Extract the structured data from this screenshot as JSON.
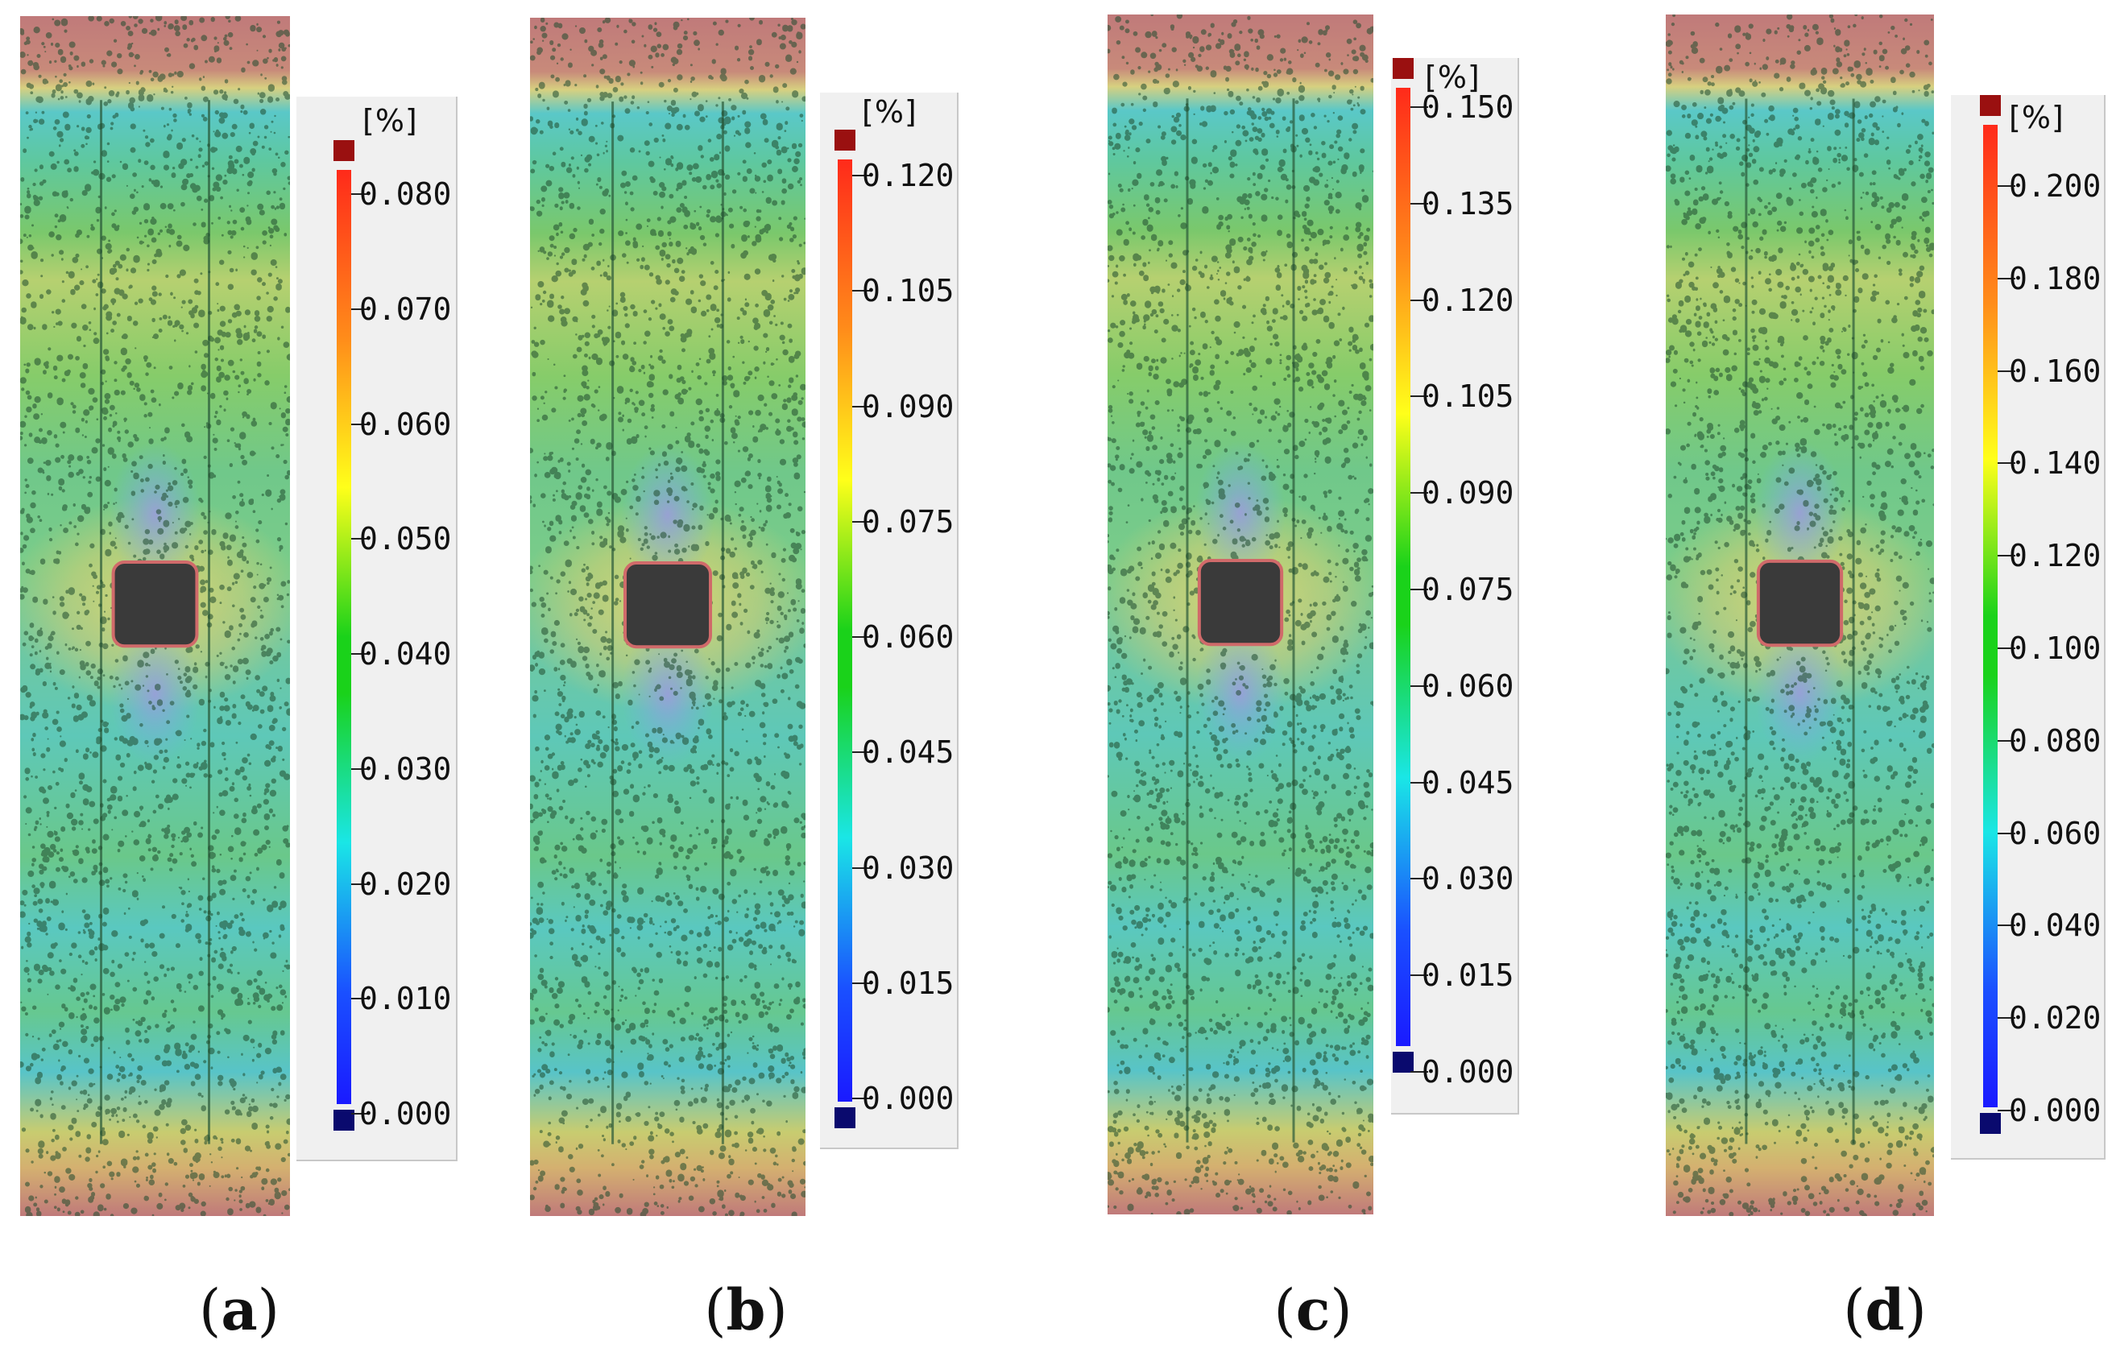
{
  "panels": [
    {
      "id": "a",
      "caption_letter": "a",
      "unit": "[%]",
      "colors": {
        "top": "#9a1010",
        "bottom": "#0a0a6e"
      },
      "ticks": [
        "0.080",
        "0.070",
        "0.060",
        "0.050",
        "0.040",
        "0.030",
        "0.020",
        "0.010",
        "0.000"
      ]
    },
    {
      "id": "b",
      "caption_letter": "b",
      "unit": "[%]",
      "colors": {
        "top": "#9a1010",
        "bottom": "#0a0a6e"
      },
      "ticks": [
        "0.120",
        "0.105",
        "0.090",
        "0.075",
        "0.060",
        "0.045",
        "0.030",
        "0.015",
        "0.000"
      ]
    },
    {
      "id": "c",
      "caption_letter": "c",
      "unit": "[%]",
      "colors": {
        "top": "#9a1010",
        "bottom": "#0a0a6e"
      },
      "ticks": [
        "0.150",
        "0.135",
        "0.120",
        "0.105",
        "0.090",
        "0.075",
        "0.060",
        "0.045",
        "0.030",
        "0.015",
        "0.000"
      ]
    },
    {
      "id": "d",
      "caption_letter": "d",
      "unit": "[%]",
      "colors": {
        "top": "#9a1010",
        "bottom": "#0a0a6e"
      },
      "ticks": [
        "0.200",
        "0.180",
        "0.160",
        "0.140",
        "0.120",
        "0.100",
        "0.080",
        "0.060",
        "0.040",
        "0.020",
        "0.000"
      ]
    }
  ],
  "palette": {
    "red": "#ff2a1a",
    "orange": "#ff8c1a",
    "yellow": "#ffff1a",
    "green": "#1ad21a",
    "cyan": "#1ae6e6",
    "blue": "#1a50ff",
    "darkblue": "#1a1aff"
  }
}
